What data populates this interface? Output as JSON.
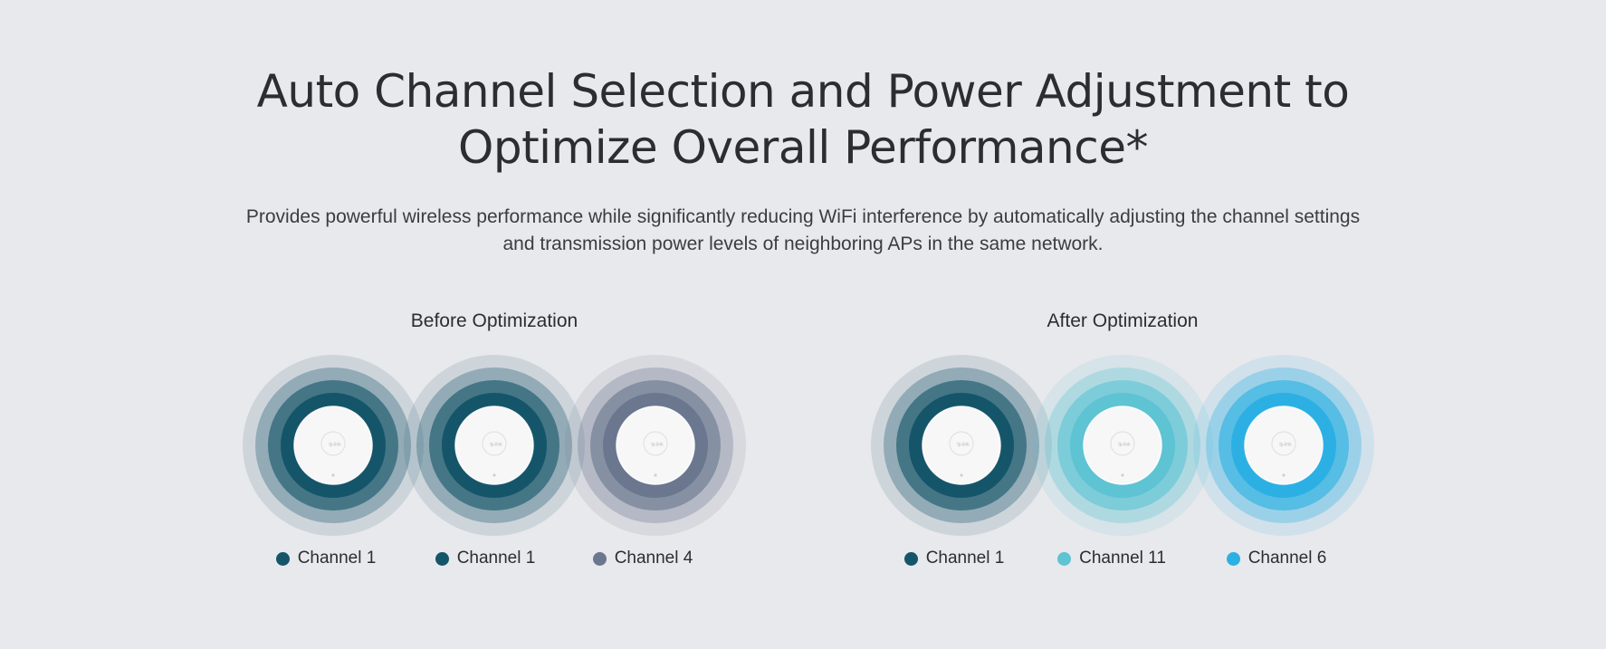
{
  "headline": {
    "line1": "Auto Channel Selection and Power Adjustment to",
    "line2": "Optimize Overall Performance*"
  },
  "subhead": {
    "line1": "Provides powerful wireless performance while significantly reducing WiFi interference by automatically adjusting the channel settings",
    "line2": "and transmission power levels of neighboring APs in the same network."
  },
  "before": {
    "title": "Before Optimization",
    "aps": [
      {
        "channel": "Channel 1",
        "color": "#155569"
      },
      {
        "channel": "Channel 1",
        "color": "#155569"
      },
      {
        "channel": "Channel 4",
        "color": "#6a778e"
      }
    ]
  },
  "after": {
    "title": "After Optimization",
    "aps": [
      {
        "channel": "Channel 1",
        "color": "#155569"
      },
      {
        "channel": "Channel 11",
        "color": "#5ec3d3"
      },
      {
        "channel": "Channel 6",
        "color": "#2cb0e4"
      }
    ]
  },
  "device_logo": "tp-link"
}
